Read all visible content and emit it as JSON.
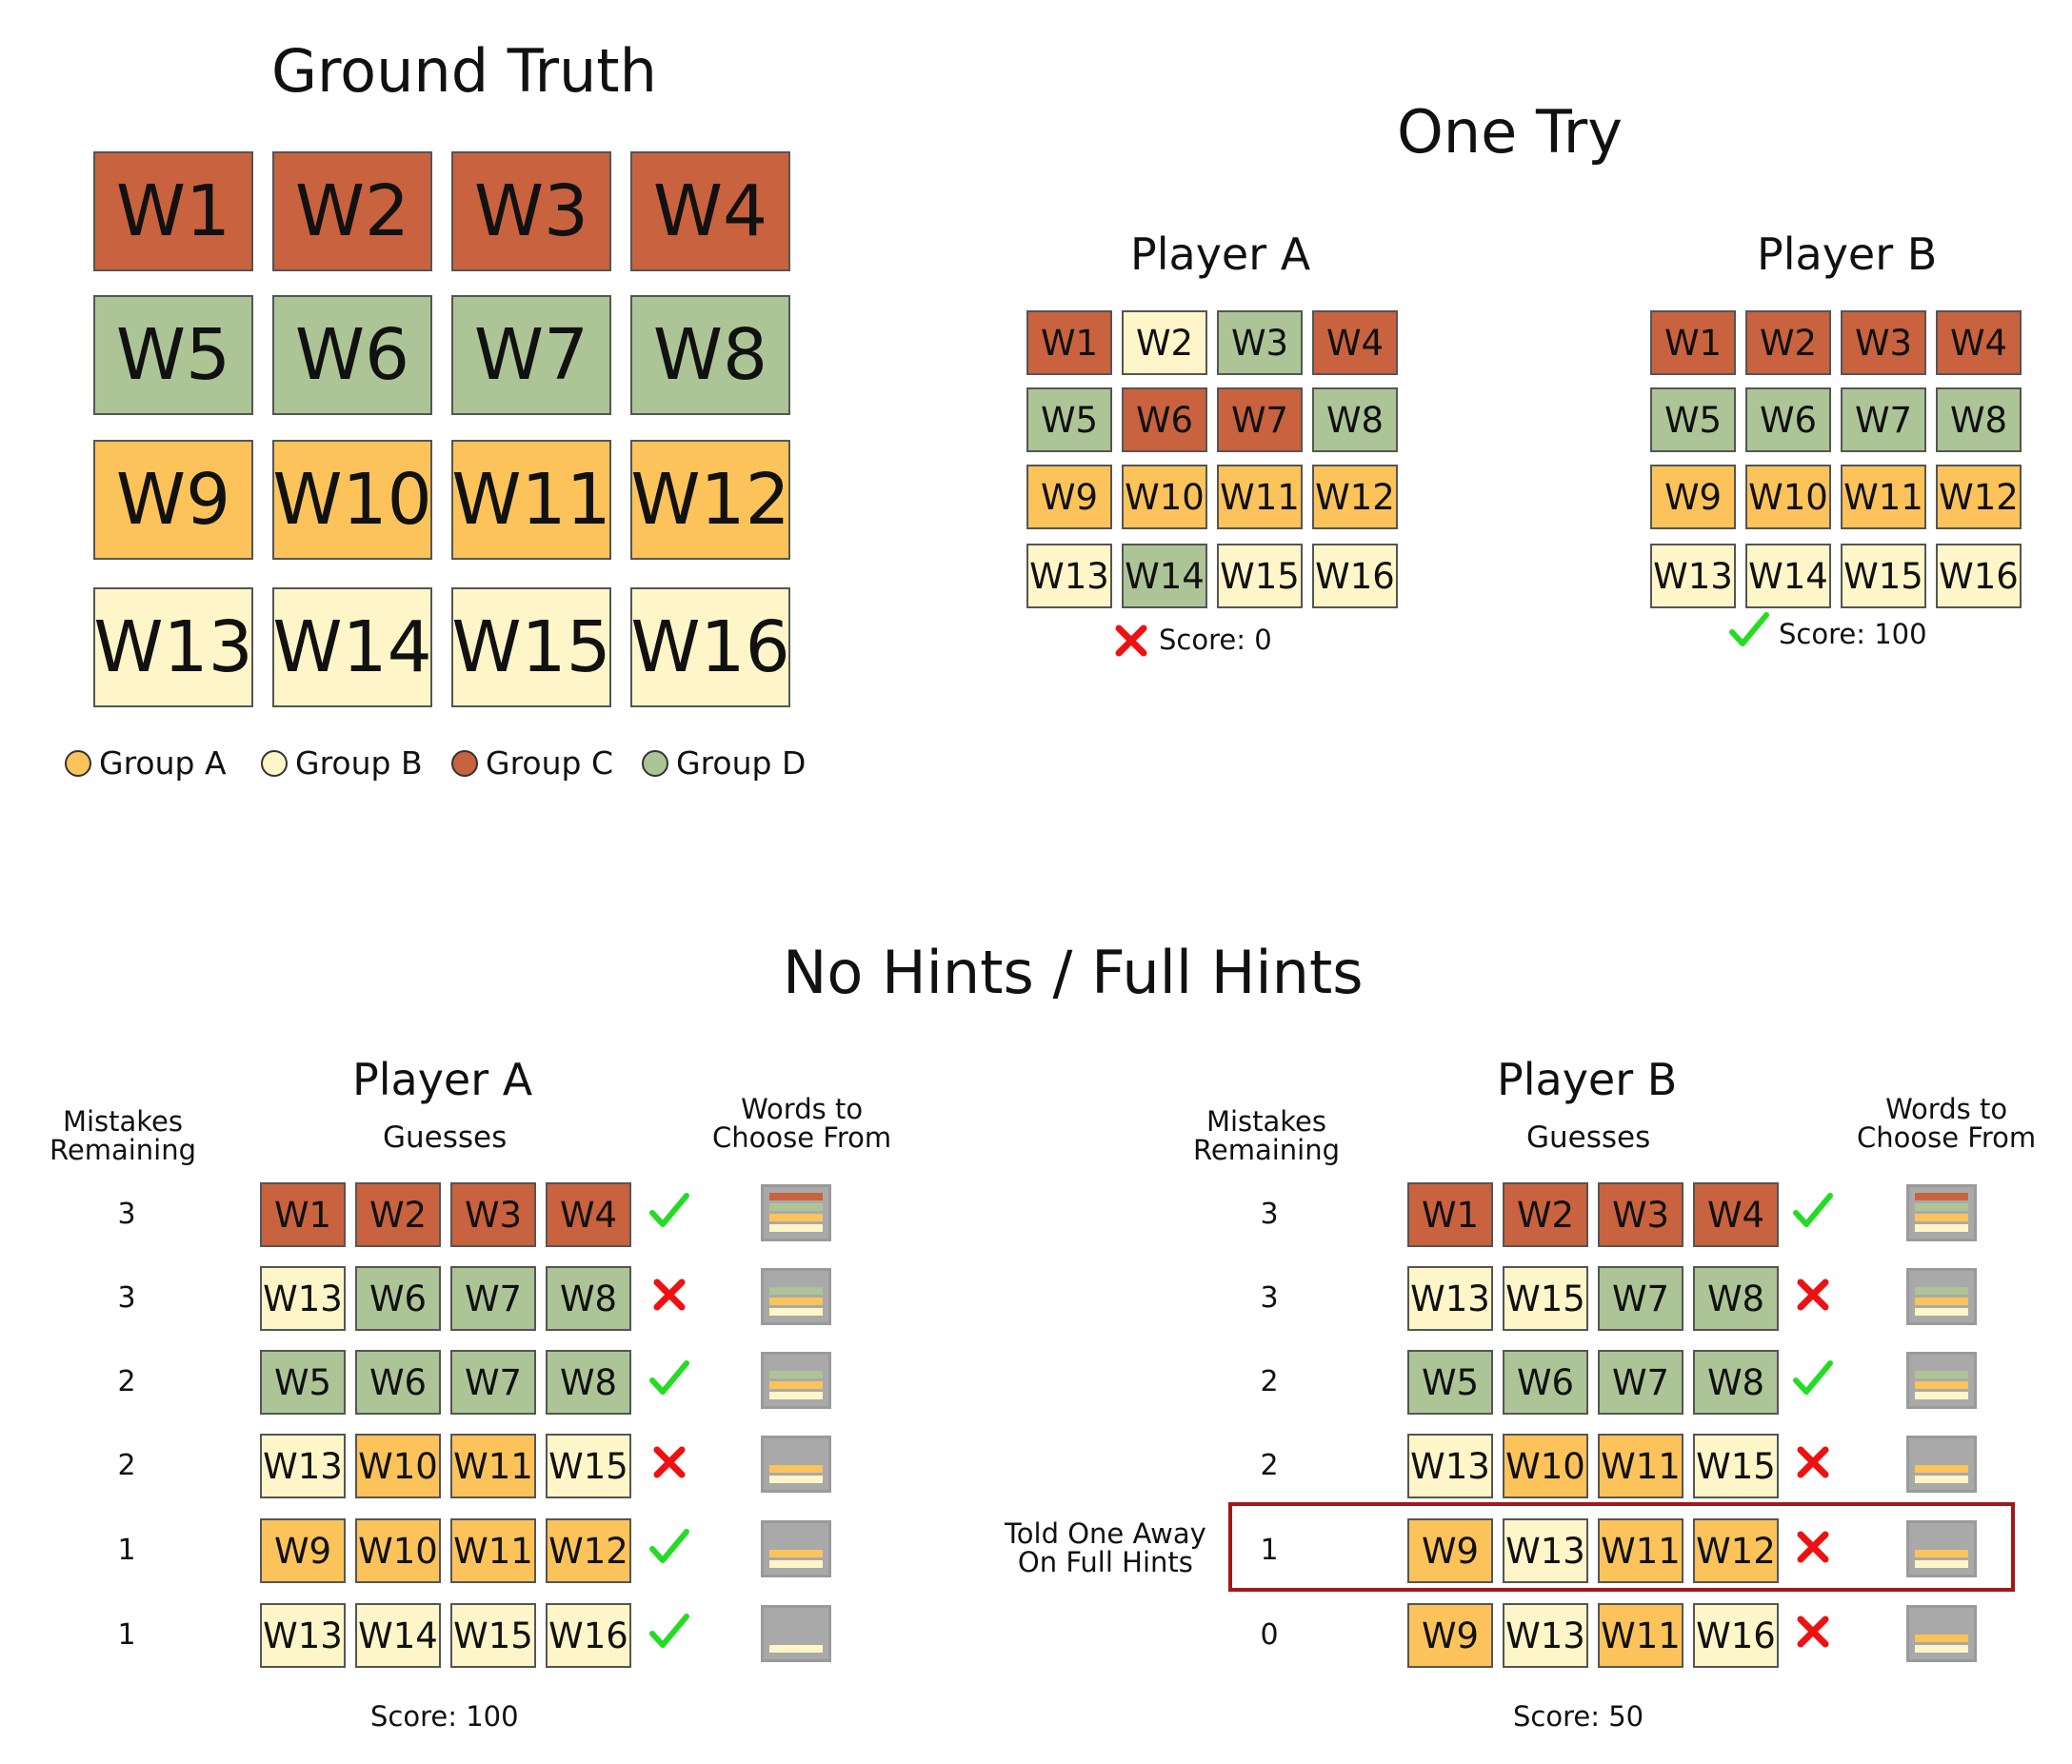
{
  "colors": {
    "group_a": "#FBC35A",
    "group_b": "#FEF6C8",
    "group_c": "#C9623E",
    "group_d": "#ADC497",
    "mini_bg": "#A9A9A9",
    "check": "#22DD22",
    "cross": "#EE1111",
    "highlight": "#A01818"
  },
  "ground_truth": {
    "title": "Ground Truth",
    "rows": [
      [
        {
          "w": "W1",
          "g": "c"
        },
        {
          "w": "W2",
          "g": "c"
        },
        {
          "w": "W3",
          "g": "c"
        },
        {
          "w": "W4",
          "g": "c"
        }
      ],
      [
        {
          "w": "W5",
          "g": "d"
        },
        {
          "w": "W6",
          "g": "d"
        },
        {
          "w": "W7",
          "g": "d"
        },
        {
          "w": "W8",
          "g": "d"
        }
      ],
      [
        {
          "w": "W9",
          "g": "a"
        },
        {
          "w": "W10",
          "g": "a"
        },
        {
          "w": "W11",
          "g": "a"
        },
        {
          "w": "W12",
          "g": "a"
        }
      ],
      [
        {
          "w": "W13",
          "g": "b"
        },
        {
          "w": "W14",
          "g": "b"
        },
        {
          "w": "W15",
          "g": "b"
        },
        {
          "w": "W16",
          "g": "b"
        }
      ]
    ],
    "legend": [
      {
        "label": "Group A",
        "g": "a"
      },
      {
        "label": "Group B",
        "g": "b"
      },
      {
        "label": "Group C",
        "g": "c"
      },
      {
        "label": "Group D",
        "g": "d"
      }
    ]
  },
  "one_try": {
    "title": "One Try",
    "player_a": {
      "label": "Player A",
      "rows": [
        [
          {
            "w": "W1",
            "g": "c"
          },
          {
            "w": "W2",
            "g": "b"
          },
          {
            "w": "W3",
            "g": "d"
          },
          {
            "w": "W4",
            "g": "c"
          }
        ],
        [
          {
            "w": "W5",
            "g": "d"
          },
          {
            "w": "W6",
            "g": "c"
          },
          {
            "w": "W7",
            "g": "c"
          },
          {
            "w": "W8",
            "g": "d"
          }
        ],
        [
          {
            "w": "W9",
            "g": "a"
          },
          {
            "w": "W10",
            "g": "a"
          },
          {
            "w": "W11",
            "g": "a"
          },
          {
            "w": "W12",
            "g": "a"
          }
        ],
        [
          {
            "w": "W13",
            "g": "b"
          },
          {
            "w": "W14",
            "g": "d"
          },
          {
            "w": "W15",
            "g": "b"
          },
          {
            "w": "W16",
            "g": "b"
          }
        ]
      ],
      "result": "wrong",
      "score": "Score: 0"
    },
    "player_b": {
      "label": "Player B",
      "rows": [
        [
          {
            "w": "W1",
            "g": "c"
          },
          {
            "w": "W2",
            "g": "c"
          },
          {
            "w": "W3",
            "g": "c"
          },
          {
            "w": "W4",
            "g": "c"
          }
        ],
        [
          {
            "w": "W5",
            "g": "d"
          },
          {
            "w": "W6",
            "g": "d"
          },
          {
            "w": "W7",
            "g": "d"
          },
          {
            "w": "W8",
            "g": "d"
          }
        ],
        [
          {
            "w": "W9",
            "g": "a"
          },
          {
            "w": "W10",
            "g": "a"
          },
          {
            "w": "W11",
            "g": "a"
          },
          {
            "w": "W12",
            "g": "a"
          }
        ],
        [
          {
            "w": "W13",
            "g": "b"
          },
          {
            "w": "W14",
            "g": "b"
          },
          {
            "w": "W15",
            "g": "b"
          },
          {
            "w": "W16",
            "g": "b"
          }
        ]
      ],
      "result": "correct",
      "score": "Score: 100"
    }
  },
  "hints": {
    "title": "No Hints / Full Hints",
    "mistakes_header": "Mistakes\nRemaining",
    "guesses_header": "Guesses",
    "words_header": "Words to\nChoose From",
    "player_a": {
      "label": "Player A",
      "score": "Score: 100",
      "rows": [
        {
          "mistakes": "3",
          "tiles": [
            {
              "w": "W1",
              "g": "c"
            },
            {
              "w": "W2",
              "g": "c"
            },
            {
              "w": "W3",
              "g": "c"
            },
            {
              "w": "W4",
              "g": "c"
            }
          ],
          "result": "correct",
          "pool": [
            "c",
            "d",
            "a",
            "b"
          ]
        },
        {
          "mistakes": "3",
          "tiles": [
            {
              "w": "W13",
              "g": "b"
            },
            {
              "w": "W6",
              "g": "d"
            },
            {
              "w": "W7",
              "g": "d"
            },
            {
              "w": "W8",
              "g": "d"
            }
          ],
          "result": "wrong",
          "pool": [
            "d",
            "a",
            "b"
          ]
        },
        {
          "mistakes": "2",
          "tiles": [
            {
              "w": "W5",
              "g": "d"
            },
            {
              "w": "W6",
              "g": "d"
            },
            {
              "w": "W7",
              "g": "d"
            },
            {
              "w": "W8",
              "g": "d"
            }
          ],
          "result": "correct",
          "pool": [
            "d",
            "a",
            "b"
          ]
        },
        {
          "mistakes": "2",
          "tiles": [
            {
              "w": "W13",
              "g": "b"
            },
            {
              "w": "W10",
              "g": "a"
            },
            {
              "w": "W11",
              "g": "a"
            },
            {
              "w": "W15",
              "g": "b"
            }
          ],
          "result": "wrong",
          "pool": [
            "a",
            "b"
          ]
        },
        {
          "mistakes": "1",
          "tiles": [
            {
              "w": "W9",
              "g": "a"
            },
            {
              "w": "W10",
              "g": "a"
            },
            {
              "w": "W11",
              "g": "a"
            },
            {
              "w": "W12",
              "g": "a"
            }
          ],
          "result": "correct",
          "pool": [
            "a",
            "b"
          ]
        },
        {
          "mistakes": "1",
          "tiles": [
            {
              "w": "W13",
              "g": "b"
            },
            {
              "w": "W14",
              "g": "b"
            },
            {
              "w": "W15",
              "g": "b"
            },
            {
              "w": "W16",
              "g": "b"
            }
          ],
          "result": "correct",
          "pool": [
            "b"
          ]
        }
      ]
    },
    "player_b": {
      "label": "Player B",
      "score": "Score: 50",
      "note": "Told One Away\nOn Full Hints",
      "rows": [
        {
          "mistakes": "3",
          "tiles": [
            {
              "w": "W1",
              "g": "c"
            },
            {
              "w": "W2",
              "g": "c"
            },
            {
              "w": "W3",
              "g": "c"
            },
            {
              "w": "W4",
              "g": "c"
            }
          ],
          "result": "correct",
          "pool": [
            "c",
            "d",
            "a",
            "b"
          ]
        },
        {
          "mistakes": "3",
          "tiles": [
            {
              "w": "W13",
              "g": "b"
            },
            {
              "w": "W15",
              "g": "b"
            },
            {
              "w": "W7",
              "g": "d"
            },
            {
              "w": "W8",
              "g": "d"
            }
          ],
          "result": "wrong",
          "pool": [
            "d",
            "a",
            "b"
          ]
        },
        {
          "mistakes": "2",
          "tiles": [
            {
              "w": "W5",
              "g": "d"
            },
            {
              "w": "W6",
              "g": "d"
            },
            {
              "w": "W7",
              "g": "d"
            },
            {
              "w": "W8",
              "g": "d"
            }
          ],
          "result": "correct",
          "pool": [
            "d",
            "a",
            "b"
          ]
        },
        {
          "mistakes": "2",
          "tiles": [
            {
              "w": "W13",
              "g": "b"
            },
            {
              "w": "W10",
              "g": "a"
            },
            {
              "w": "W11",
              "g": "a"
            },
            {
              "w": "W15",
              "g": "b"
            }
          ],
          "result": "wrong",
          "pool": [
            "a",
            "b"
          ]
        },
        {
          "mistakes": "1",
          "tiles": [
            {
              "w": "W9",
              "g": "a"
            },
            {
              "w": "W13",
              "g": "b"
            },
            {
              "w": "W11",
              "g": "a"
            },
            {
              "w": "W12",
              "g": "a"
            }
          ],
          "result": "wrong",
          "pool": [
            "a",
            "b"
          ]
        },
        {
          "mistakes": "0",
          "tiles": [
            {
              "w": "W9",
              "g": "a"
            },
            {
              "w": "W13",
              "g": "b"
            },
            {
              "w": "W11",
              "g": "a"
            },
            {
              "w": "W16",
              "g": "b"
            }
          ],
          "result": "wrong",
          "pool": [
            "a",
            "b"
          ]
        }
      ]
    }
  }
}
